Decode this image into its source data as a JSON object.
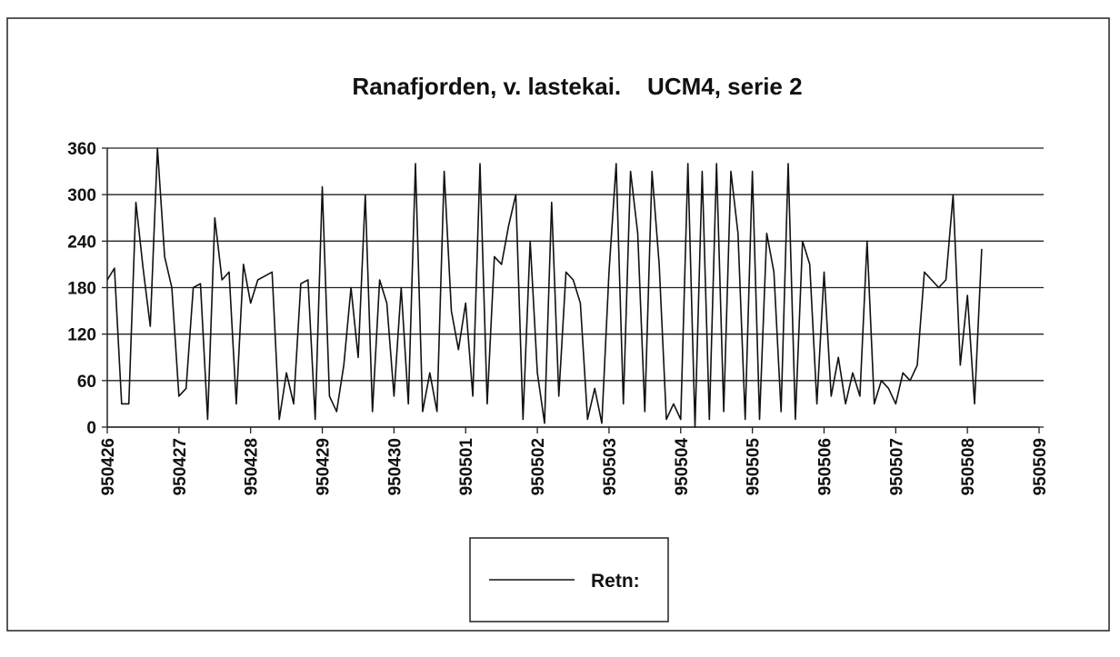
{
  "chart_data": {
    "type": "line",
    "title": "Ranafjorden, v. lastekai.    UCM4, serie 2",
    "xlim": [
      0,
      13
    ],
    "xticks": [
      {
        "value": 0,
        "label": "950426"
      },
      {
        "value": 1,
        "label": "950427"
      },
      {
        "value": 2,
        "label": "950428"
      },
      {
        "value": 3,
        "label": "950429"
      },
      {
        "value": 4,
        "label": "950430"
      },
      {
        "value": 5,
        "label": "950501"
      },
      {
        "value": 6,
        "label": "950502"
      },
      {
        "value": 7,
        "label": "950503"
      },
      {
        "value": 8,
        "label": "950504"
      },
      {
        "value": 9,
        "label": "950505"
      },
      {
        "value": 10,
        "label": "950506"
      },
      {
        "value": 11,
        "label": "950507"
      },
      {
        "value": 12,
        "label": "950508"
      },
      {
        "value": 13,
        "label": "950509"
      }
    ],
    "ylim": [
      0,
      360
    ],
    "yticks": [
      0,
      60,
      120,
      180,
      240,
      300,
      360
    ],
    "grid": true,
    "legend": "bottom",
    "x": [
      0,
      0.1,
      0.2,
      0.3,
      0.4,
      0.5,
      0.6,
      0.7,
      0.8,
      0.9,
      1,
      1.1,
      1.2,
      1.3,
      1.4,
      1.5,
      1.6,
      1.7,
      1.8,
      1.9,
      2,
      2.1,
      2.2,
      2.3,
      2.4,
      2.5,
      2.6,
      2.7,
      2.8,
      2.9,
      3,
      3.1,
      3.2,
      3.3,
      3.4,
      3.5,
      3.6,
      3.7,
      3.8,
      3.9,
      4,
      4.1,
      4.2,
      4.3,
      4.4,
      4.5,
      4.6,
      4.7,
      4.8,
      4.9,
      5,
      5.1,
      5.2,
      5.3,
      5.4,
      5.5,
      5.6,
      5.7,
      5.8,
      5.9,
      6,
      6.1,
      6.2,
      6.3,
      6.4,
      6.5,
      6.6,
      6.7,
      6.8,
      6.9,
      7,
      7.1,
      7.2,
      7.3,
      7.4,
      7.5,
      7.6,
      7.7,
      7.8,
      7.9,
      8,
      8.1,
      8.2,
      8.3,
      8.4,
      8.5,
      8.6,
      8.7,
      8.8,
      8.9,
      9,
      9.1,
      9.2,
      9.3,
      9.4,
      9.5,
      9.6,
      9.7,
      9.8,
      9.9,
      10,
      10.1,
      10.2,
      10.3,
      10.4,
      10.5,
      10.6,
      10.7,
      10.8,
      10.9,
      11,
      11.1,
      11.2,
      11.3,
      11.4,
      11.5,
      11.6,
      11.7,
      11.8,
      11.9,
      12,
      12.1,
      12.2
    ],
    "series": [
      {
        "name": "Retn:",
        "color": "#111111",
        "values": [
          190,
          205,
          30,
          30,
          290,
          205,
          130,
          360,
          220,
          180,
          40,
          50,
          180,
          185,
          10,
          270,
          190,
          200,
          30,
          210,
          160,
          190,
          195,
          200,
          10,
          70,
          30,
          185,
          190,
          10,
          310,
          40,
          20,
          80,
          180,
          90,
          300,
          20,
          190,
          160,
          40,
          180,
          30,
          340,
          20,
          70,
          20,
          330,
          150,
          100,
          160,
          40,
          340,
          30,
          220,
          210,
          260,
          300,
          10,
          240,
          70,
          5,
          290,
          40,
          200,
          190,
          160,
          10,
          50,
          5,
          200,
          340,
          30,
          330,
          250,
          20,
          330,
          210,
          10,
          30,
          10,
          340,
          0,
          330,
          10,
          340,
          20,
          330,
          250,
          10,
          330,
          10,
          250,
          200,
          20,
          340,
          10,
          240,
          210,
          30,
          200,
          40,
          90,
          30,
          70,
          40,
          240,
          30,
          60,
          50,
          30,
          70,
          60,
          80,
          200,
          190,
          180,
          190,
          300,
          80,
          170,
          30,
          230
        ]
      }
    ]
  }
}
